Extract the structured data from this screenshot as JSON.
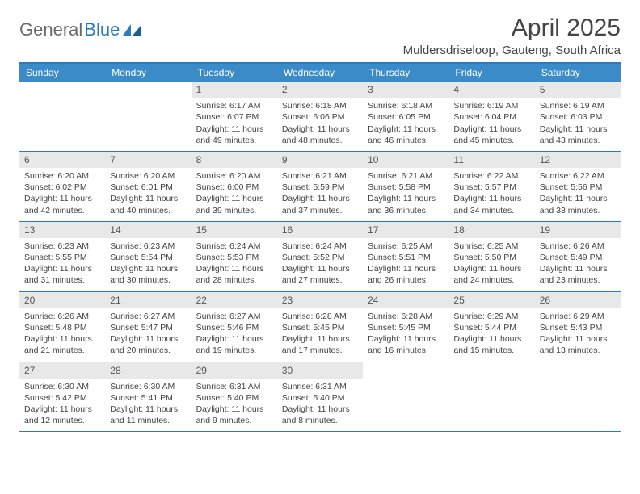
{
  "logo": {
    "text1": "General",
    "text2": "Blue"
  },
  "title": "April 2025",
  "location": "Muldersdriseloop, Gauteng, South Africa",
  "colors": {
    "accent": "#2a7bbf",
    "header_bg": "#3b8bc8",
    "daynum_bg": "#e8e8e8",
    "text": "#444444"
  },
  "day_names": [
    "Sunday",
    "Monday",
    "Tuesday",
    "Wednesday",
    "Thursday",
    "Friday",
    "Saturday"
  ],
  "weeks": [
    [
      {
        "n": "",
        "sr": "",
        "ss": "",
        "dl": ""
      },
      {
        "n": "",
        "sr": "",
        "ss": "",
        "dl": ""
      },
      {
        "n": "1",
        "sr": "Sunrise: 6:17 AM",
        "ss": "Sunset: 6:07 PM",
        "dl": "Daylight: 11 hours and 49 minutes."
      },
      {
        "n": "2",
        "sr": "Sunrise: 6:18 AM",
        "ss": "Sunset: 6:06 PM",
        "dl": "Daylight: 11 hours and 48 minutes."
      },
      {
        "n": "3",
        "sr": "Sunrise: 6:18 AM",
        "ss": "Sunset: 6:05 PM",
        "dl": "Daylight: 11 hours and 46 minutes."
      },
      {
        "n": "4",
        "sr": "Sunrise: 6:19 AM",
        "ss": "Sunset: 6:04 PM",
        "dl": "Daylight: 11 hours and 45 minutes."
      },
      {
        "n": "5",
        "sr": "Sunrise: 6:19 AM",
        "ss": "Sunset: 6:03 PM",
        "dl": "Daylight: 11 hours and 43 minutes."
      }
    ],
    [
      {
        "n": "6",
        "sr": "Sunrise: 6:20 AM",
        "ss": "Sunset: 6:02 PM",
        "dl": "Daylight: 11 hours and 42 minutes."
      },
      {
        "n": "7",
        "sr": "Sunrise: 6:20 AM",
        "ss": "Sunset: 6:01 PM",
        "dl": "Daylight: 11 hours and 40 minutes."
      },
      {
        "n": "8",
        "sr": "Sunrise: 6:20 AM",
        "ss": "Sunset: 6:00 PM",
        "dl": "Daylight: 11 hours and 39 minutes."
      },
      {
        "n": "9",
        "sr": "Sunrise: 6:21 AM",
        "ss": "Sunset: 5:59 PM",
        "dl": "Daylight: 11 hours and 37 minutes."
      },
      {
        "n": "10",
        "sr": "Sunrise: 6:21 AM",
        "ss": "Sunset: 5:58 PM",
        "dl": "Daylight: 11 hours and 36 minutes."
      },
      {
        "n": "11",
        "sr": "Sunrise: 6:22 AM",
        "ss": "Sunset: 5:57 PM",
        "dl": "Daylight: 11 hours and 34 minutes."
      },
      {
        "n": "12",
        "sr": "Sunrise: 6:22 AM",
        "ss": "Sunset: 5:56 PM",
        "dl": "Daylight: 11 hours and 33 minutes."
      }
    ],
    [
      {
        "n": "13",
        "sr": "Sunrise: 6:23 AM",
        "ss": "Sunset: 5:55 PM",
        "dl": "Daylight: 11 hours and 31 minutes."
      },
      {
        "n": "14",
        "sr": "Sunrise: 6:23 AM",
        "ss": "Sunset: 5:54 PM",
        "dl": "Daylight: 11 hours and 30 minutes."
      },
      {
        "n": "15",
        "sr": "Sunrise: 6:24 AM",
        "ss": "Sunset: 5:53 PM",
        "dl": "Daylight: 11 hours and 28 minutes."
      },
      {
        "n": "16",
        "sr": "Sunrise: 6:24 AM",
        "ss": "Sunset: 5:52 PM",
        "dl": "Daylight: 11 hours and 27 minutes."
      },
      {
        "n": "17",
        "sr": "Sunrise: 6:25 AM",
        "ss": "Sunset: 5:51 PM",
        "dl": "Daylight: 11 hours and 26 minutes."
      },
      {
        "n": "18",
        "sr": "Sunrise: 6:25 AM",
        "ss": "Sunset: 5:50 PM",
        "dl": "Daylight: 11 hours and 24 minutes."
      },
      {
        "n": "19",
        "sr": "Sunrise: 6:26 AM",
        "ss": "Sunset: 5:49 PM",
        "dl": "Daylight: 11 hours and 23 minutes."
      }
    ],
    [
      {
        "n": "20",
        "sr": "Sunrise: 6:26 AM",
        "ss": "Sunset: 5:48 PM",
        "dl": "Daylight: 11 hours and 21 minutes."
      },
      {
        "n": "21",
        "sr": "Sunrise: 6:27 AM",
        "ss": "Sunset: 5:47 PM",
        "dl": "Daylight: 11 hours and 20 minutes."
      },
      {
        "n": "22",
        "sr": "Sunrise: 6:27 AM",
        "ss": "Sunset: 5:46 PM",
        "dl": "Daylight: 11 hours and 19 minutes."
      },
      {
        "n": "23",
        "sr": "Sunrise: 6:28 AM",
        "ss": "Sunset: 5:45 PM",
        "dl": "Daylight: 11 hours and 17 minutes."
      },
      {
        "n": "24",
        "sr": "Sunrise: 6:28 AM",
        "ss": "Sunset: 5:45 PM",
        "dl": "Daylight: 11 hours and 16 minutes."
      },
      {
        "n": "25",
        "sr": "Sunrise: 6:29 AM",
        "ss": "Sunset: 5:44 PM",
        "dl": "Daylight: 11 hours and 15 minutes."
      },
      {
        "n": "26",
        "sr": "Sunrise: 6:29 AM",
        "ss": "Sunset: 5:43 PM",
        "dl": "Daylight: 11 hours and 13 minutes."
      }
    ],
    [
      {
        "n": "27",
        "sr": "Sunrise: 6:30 AM",
        "ss": "Sunset: 5:42 PM",
        "dl": "Daylight: 11 hours and 12 minutes."
      },
      {
        "n": "28",
        "sr": "Sunrise: 6:30 AM",
        "ss": "Sunset: 5:41 PM",
        "dl": "Daylight: 11 hours and 11 minutes."
      },
      {
        "n": "29",
        "sr": "Sunrise: 6:31 AM",
        "ss": "Sunset: 5:40 PM",
        "dl": "Daylight: 11 hours and 9 minutes."
      },
      {
        "n": "30",
        "sr": "Sunrise: 6:31 AM",
        "ss": "Sunset: 5:40 PM",
        "dl": "Daylight: 11 hours and 8 minutes."
      },
      {
        "n": "",
        "sr": "",
        "ss": "",
        "dl": ""
      },
      {
        "n": "",
        "sr": "",
        "ss": "",
        "dl": ""
      },
      {
        "n": "",
        "sr": "",
        "ss": "",
        "dl": ""
      }
    ]
  ]
}
